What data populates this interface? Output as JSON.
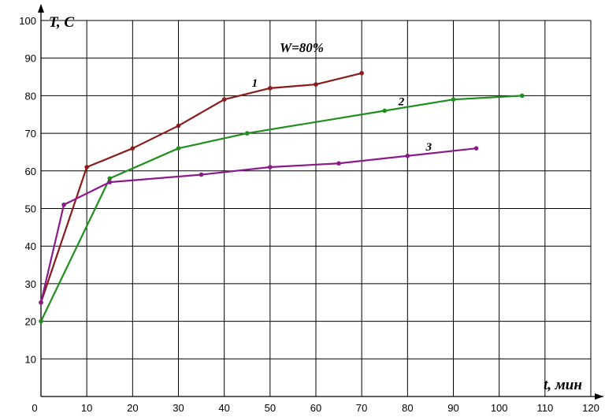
{
  "chart_data": {
    "type": "line",
    "title": "",
    "xlabel": "t, мин",
    "ylabel": "T, C",
    "annotation": "W=80%",
    "xlim": [
      0,
      120
    ],
    "ylim": [
      0,
      100
    ],
    "x_ticks": [
      0,
      10,
      20,
      30,
      40,
      50,
      60,
      70,
      80,
      90,
      100,
      110,
      120
    ],
    "y_ticks": [
      10,
      20,
      30,
      40,
      50,
      60,
      70,
      80,
      90,
      100
    ],
    "grid": true,
    "series": [
      {
        "name": "1",
        "color": "#8b1a1a",
        "x": [
          0,
          10,
          20,
          30,
          40,
          50,
          60,
          70
        ],
        "y": [
          25,
          61,
          66,
          72,
          79,
          82,
          83,
          86
        ],
        "label_at": [
          46,
          82
        ]
      },
      {
        "name": "2",
        "color": "#1f8f1f",
        "x": [
          0,
          15,
          30,
          45,
          75,
          90,
          105
        ],
        "y": [
          20,
          58,
          66,
          70,
          76,
          79,
          80
        ],
        "label_at": [
          78,
          77
        ]
      },
      {
        "name": "3",
        "color": "#8b1a8b",
        "x": [
          0,
          5,
          15,
          35,
          50,
          65,
          80,
          95
        ],
        "y": [
          25,
          51,
          57,
          59,
          61,
          62,
          64,
          66
        ],
        "label_at": [
          84,
          65
        ]
      }
    ]
  }
}
